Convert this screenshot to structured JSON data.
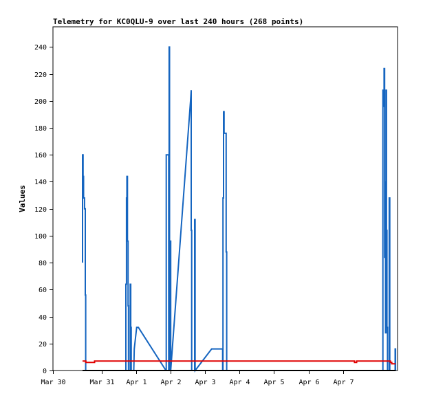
{
  "chart_data": {
    "type": "line",
    "title": "Telemetry for KC0QLU-9 over last 240 hours (268 points)",
    "xlabel": "",
    "ylabel": "Values",
    "xlim": [
      0,
      240
    ],
    "ylim": [
      0,
      255
    ],
    "y_ticks": [
      0,
      20,
      40,
      60,
      80,
      100,
      120,
      140,
      160,
      180,
      200,
      220,
      240
    ],
    "x_ticks": [
      {
        "label": "Mar 30",
        "x": 0
      },
      {
        "label": "Mar 31",
        "x": 34
      },
      {
        "label": "Apr 1",
        "x": 58
      },
      {
        "label": "Apr 2",
        "x": 82
      },
      {
        "label": "Apr 3",
        "x": 106
      },
      {
        "label": "Apr 4",
        "x": 130
      },
      {
        "label": "Apr 5",
        "x": 154
      },
      {
        "label": "Apr 6",
        "x": 178
      },
      {
        "label": "Apr 7",
        "x": 202
      }
    ],
    "grid": false,
    "series": [
      {
        "color": "#1565c0",
        "points": [
          [
            20.6,
            80
          ],
          [
            20.6,
            160
          ],
          [
            21.0,
            160
          ],
          [
            21.0,
            144
          ],
          [
            21.3,
            144
          ],
          [
            21.3,
            128
          ],
          [
            22.0,
            128
          ],
          [
            22.0,
            120
          ],
          [
            22.5,
            120
          ],
          [
            22.5,
            56
          ],
          [
            22.8,
            56
          ],
          [
            22.8,
            0
          ],
          [
            50.8,
            0
          ],
          [
            50.8,
            64
          ],
          [
            51.2,
            64
          ],
          [
            51.2,
            128
          ],
          [
            51.5,
            128
          ],
          [
            51.5,
            144
          ],
          [
            51.9,
            144
          ],
          [
            51.9,
            96
          ],
          [
            52.3,
            96
          ],
          [
            52.3,
            48
          ],
          [
            52.6,
            48
          ],
          [
            52.6,
            0
          ],
          [
            53.8,
            0
          ],
          [
            53.8,
            64
          ],
          [
            54.2,
            64
          ],
          [
            54.2,
            32
          ],
          [
            54.5,
            32
          ],
          [
            54.5,
            0
          ],
          [
            56.3,
            0
          ],
          [
            56.6,
            16
          ],
          [
            58.3,
            32
          ],
          [
            59.5,
            32
          ],
          [
            78.7,
            0
          ],
          [
            78.9,
            0
          ],
          [
            78.9,
            160
          ],
          [
            80.6,
            160
          ],
          [
            80.6,
            0
          ],
          [
            80.9,
            0
          ],
          [
            80.9,
            240
          ],
          [
            81.2,
            240
          ],
          [
            81.2,
            0
          ],
          [
            81.6,
            0
          ],
          [
            81.6,
            96
          ],
          [
            82.0,
            96
          ],
          [
            82.0,
            0
          ],
          [
            95.8,
            200
          ],
          [
            96.3,
            208
          ],
          [
            96.3,
            104
          ],
          [
            96.6,
            104
          ],
          [
            96.6,
            0
          ],
          [
            98.7,
            0
          ],
          [
            98.7,
            112
          ],
          [
            99.0,
            112
          ],
          [
            99.0,
            0
          ],
          [
            110.5,
            16
          ],
          [
            118.2,
            16
          ],
          [
            118.2,
            0
          ],
          [
            118.4,
            0
          ],
          [
            118.4,
            128
          ],
          [
            118.8,
            128
          ],
          [
            118.8,
            192
          ],
          [
            119.2,
            192
          ],
          [
            119.2,
            176
          ],
          [
            120.6,
            176
          ],
          [
            120.6,
            88
          ],
          [
            121.0,
            88
          ],
          [
            121.0,
            0
          ],
          [
            229.8,
            0
          ],
          [
            229.8,
            208
          ],
          [
            230.2,
            208
          ],
          [
            230.2,
            196
          ],
          [
            230.6,
            196
          ],
          [
            230.6,
            224
          ],
          [
            231.0,
            224
          ],
          [
            231.0,
            84
          ],
          [
            231.3,
            84
          ],
          [
            231.3,
            140
          ],
          [
            231.6,
            140
          ],
          [
            231.6,
            28
          ],
          [
            232.0,
            28
          ],
          [
            232.0,
            208
          ],
          [
            232.3,
            208
          ],
          [
            232.3,
            104
          ],
          [
            232.6,
            104
          ],
          [
            232.6,
            32
          ],
          [
            233.0,
            32
          ],
          [
            233.0,
            0
          ],
          [
            234.2,
            0
          ],
          [
            234.2,
            128
          ],
          [
            234.6,
            128
          ],
          [
            234.6,
            0
          ],
          [
            238.3,
            0
          ],
          [
            238.3,
            16
          ],
          [
            238.6,
            16
          ],
          [
            238.6,
            0
          ]
        ]
      },
      {
        "color": "#e00000",
        "points": [
          [
            20.6,
            7
          ],
          [
            22.9,
            7
          ],
          [
            22.9,
            6
          ],
          [
            29.0,
            6
          ],
          [
            29.0,
            7
          ],
          [
            139.0,
            7
          ],
          [
            210.0,
            7
          ],
          [
            210.0,
            6
          ],
          [
            211.5,
            6
          ],
          [
            211.5,
            7
          ],
          [
            235.0,
            7
          ],
          [
            235.0,
            6
          ],
          [
            236.0,
            6
          ],
          [
            236.0,
            5
          ],
          [
            238.6,
            5
          ]
        ]
      },
      {
        "color": "#000000",
        "points": [
          [
            20.6,
            0
          ],
          [
            238.8,
            0
          ]
        ]
      }
    ]
  }
}
